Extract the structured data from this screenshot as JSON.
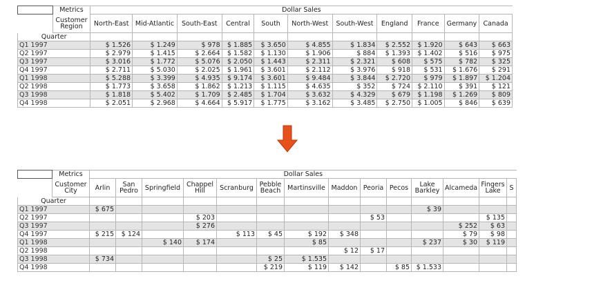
{
  "grid1": {
    "metrics_label": "Metrics",
    "metric_name": "Dollar Sales",
    "attribute_label": "Customer Region",
    "row_attribute_label": "Quarter",
    "columns": [
      "North-East",
      "Mid-Atlantic",
      "South-East",
      "Central",
      "South",
      "North-West",
      "South-West",
      "England",
      "France",
      "Germany",
      "Canada"
    ],
    "rows": [
      {
        "label": "Q1 1997",
        "values": [
          "$ 1.526",
          "$ 1.249",
          "$ 978",
          "$ 1.885",
          "$ 3.650",
          "$ 4.855",
          "$ 1.834",
          "$ 2.552",
          "$ 1.920",
          "$ 643",
          "$ 663"
        ]
      },
      {
        "label": "Q2 1997",
        "values": [
          "$ 2.979",
          "$ 1.415",
          "$ 2.664",
          "$ 1.582",
          "$ 1.130",
          "$ 1.906",
          "$ 884",
          "$ 1.393",
          "$ 1.402",
          "$ 516",
          "$ 975"
        ]
      },
      {
        "label": "Q3 1997",
        "values": [
          "$ 3.016",
          "$ 1.772",
          "$ 5.076",
          "$ 2.050",
          "$ 1.443",
          "$ 2.311",
          "$ 2.321",
          "$ 608",
          "$ 575",
          "$ 782",
          "$ 325"
        ]
      },
      {
        "label": "Q4 1997",
        "values": [
          "$ 2.711",
          "$ 5.030",
          "$ 2.025",
          "$ 1.961",
          "$ 3.601",
          "$ 2.112",
          "$ 3.976",
          "$ 918",
          "$ 531",
          "$ 1.676",
          "$ 291"
        ]
      },
      {
        "label": "Q1 1998",
        "values": [
          "$ 5.288",
          "$ 3.399",
          "$ 4.935",
          "$ 9.174",
          "$ 3.601",
          "$ 9.484",
          "$ 3.844",
          "$ 2.720",
          "$ 979",
          "$ 1.897",
          "$ 1.204"
        ]
      },
      {
        "label": "Q2 1998",
        "values": [
          "$ 1.773",
          "$ 3.658",
          "$ 1.862",
          "$ 1.213",
          "$ 1.115",
          "$ 4.635",
          "$ 352",
          "$ 724",
          "$ 2.110",
          "$ 391",
          "$ 121"
        ]
      },
      {
        "label": "Q3 1998",
        "values": [
          "$ 1.818",
          "$ 5.402",
          "$ 1.709",
          "$ 2.485",
          "$ 1.704",
          "$ 3.632",
          "$ 4.329",
          "$ 679",
          "$ 1.198",
          "$ 1.269",
          "$ 809"
        ]
      },
      {
        "label": "Q4 1998",
        "values": [
          "$ 2.051",
          "$ 2.968",
          "$ 4.664",
          "$ 5.917",
          "$ 1.775",
          "$ 3.162",
          "$ 3.485",
          "$ 2.750",
          "$ 1.005",
          "$ 846",
          "$ 639"
        ]
      }
    ]
  },
  "grid2": {
    "metrics_label": "Metrics",
    "metric_name": "Dollar Sales",
    "attribute_label": "Customer City",
    "row_attribute_label": "Quarter",
    "columns": [
      "Arlin",
      "San Pedro",
      "Springfield",
      "Chappel Hill",
      "Scranburg",
      "Pebble Beach",
      "Martinsville",
      "Maddon",
      "Peoria",
      "Pecos",
      "Lake Barkley",
      "Alcameda",
      "Fingers Lake",
      "S"
    ],
    "rows": [
      {
        "label": "Q1 1997",
        "values": [
          "$ 675",
          "",
          "",
          "",
          "",
          "",
          "",
          "",
          "",
          "",
          "$ 39",
          "",
          "",
          ""
        ]
      },
      {
        "label": "Q2 1997",
        "values": [
          "",
          "",
          "",
          "$ 203",
          "",
          "",
          "",
          "",
          "$ 53",
          "",
          "",
          "",
          "$ 135",
          ""
        ]
      },
      {
        "label": "Q3 1997",
        "values": [
          "",
          "",
          "",
          "$ 276",
          "",
          "",
          "",
          "",
          "",
          "",
          "",
          "$ 252",
          "$ 63",
          ""
        ]
      },
      {
        "label": "Q4 1997",
        "values": [
          "$ 215",
          "$ 124",
          "",
          "",
          "$ 113",
          "$ 45",
          "$ 192",
          "$ 348",
          "",
          "",
          "",
          "$ 79",
          "$ 98",
          ""
        ]
      },
      {
        "label": "Q1 1998",
        "values": [
          "",
          "",
          "$ 140",
          "$ 174",
          "",
          "",
          "$ 85",
          "",
          "",
          "",
          "$ 237",
          "$ 30",
          "$ 119",
          ""
        ]
      },
      {
        "label": "Q2 1998",
        "values": [
          "",
          "",
          "",
          "",
          "",
          "",
          "",
          "$ 12",
          "$ 17",
          "",
          "",
          "",
          "",
          ""
        ]
      },
      {
        "label": "Q3 1998",
        "values": [
          "$ 734",
          "",
          "",
          "",
          "",
          "$ 25",
          "$ 1.535",
          "",
          "",
          "",
          "",
          "",
          "",
          ""
        ]
      },
      {
        "label": "Q4 1998",
        "values": [
          "",
          "",
          "",
          "",
          "",
          "$ 219",
          "$ 119",
          "$ 142",
          "",
          "$ 85",
          "$ 1.533",
          "",
          "",
          ""
        ]
      }
    ]
  },
  "arrow": {
    "icon": "down-arrow-icon",
    "color": "#e8501a",
    "border": "#b83a10"
  }
}
